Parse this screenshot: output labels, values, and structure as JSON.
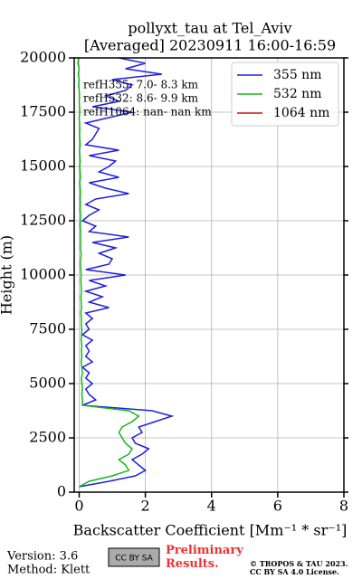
{
  "chart_data": {
    "type": "profile",
    "title": "pollyxt_tau at Tel_Aviv",
    "subtitle": "[Averaged] 20230911 16:00-16:59",
    "xlabel": "Backscatter Coefficient [Mm⁻¹ * sr⁻¹]",
    "ylabel": "Height (m)",
    "y": [
      250,
      500,
      750,
      1000,
      1250,
      1500,
      1750,
      2000,
      2250,
      2500,
      2750,
      3000,
      3250,
      3500,
      3750,
      4000,
      4250,
      4500,
      4750,
      5000,
      5250,
      5500,
      5750,
      6000,
      6250,
      6500,
      6750,
      7000,
      7250,
      7500,
      7750,
      8000,
      8250,
      8500,
      8750,
      9000,
      9250,
      9500,
      9750,
      10000,
      10250,
      10500,
      10750,
      11000,
      11250,
      11500,
      11750,
      12000,
      12250,
      12500,
      12750,
      13000,
      13250,
      13500,
      13750,
      14000,
      14250,
      14500,
      14750,
      15000,
      15250,
      15500,
      15750,
      16000,
      16250,
      16500,
      16750,
      17000,
      17250,
      17500,
      17750,
      18000,
      18250,
      18500,
      18750,
      19000,
      19250,
      19500,
      19750,
      20000
    ],
    "series": [
      {
        "name": "355 nm",
        "color": "#1f1fe0",
        "values": [
          0.0,
          0.9,
          1.7,
          2.0,
          1.8,
          1.6,
          1.9,
          2.1,
          1.7,
          1.6,
          1.9,
          1.8,
          2.3,
          2.8,
          2.2,
          0.1,
          0.5,
          0.3,
          0.2,
          0.4,
          0.2,
          0.3,
          0.1,
          0.4,
          0.2,
          0.3,
          0.2,
          0.4,
          0.1,
          0.3,
          0.2,
          0.4,
          0.2,
          0.9,
          0.3,
          0.7,
          0.2,
          0.8,
          0.3,
          1.4,
          0.2,
          0.9,
          1.0,
          0.6,
          1.1,
          0.4,
          1.5,
          0.3,
          0.5,
          0.1,
          0.3,
          0.6,
          0.2,
          0.5,
          1.5,
          0.8,
          0.3,
          1.2,
          0.6,
          0.9,
          1.1,
          0.3,
          1.2,
          0.2,
          0.4,
          0.5,
          0.6,
          0.2,
          0.9,
          1.6,
          0.4,
          1.2,
          0.8,
          1.4,
          1.6,
          1.0,
          2.5,
          1.4,
          2.0,
          1.2
        ]
      },
      {
        "name": "532 nm",
        "color": "#18b418",
        "values": [
          0.0,
          0.3,
          1.0,
          1.5,
          1.4,
          1.2,
          1.5,
          1.6,
          1.4,
          1.3,
          1.2,
          1.3,
          1.6,
          1.8,
          1.5,
          0.1,
          0.1,
          0.08,
          0.1,
          0.08,
          0.07,
          0.1,
          0.08,
          0.06,
          0.08,
          0.07,
          0.08,
          0.06,
          0.07,
          0.08,
          0.06,
          0.07,
          0.05,
          0.07,
          0.06,
          0.05,
          0.07,
          0.06,
          0.05,
          0.06,
          0.05,
          0.04,
          0.05,
          0.06,
          0.04,
          0.05,
          0.04,
          0.05,
          0.03,
          0.04,
          0.05,
          0.03,
          0.04,
          0.03,
          0.04,
          0.03,
          0.02,
          0.04,
          0.03,
          0.02,
          0.03,
          0.02,
          0.01,
          0.03,
          0.02,
          0.01,
          0.02,
          0.01,
          0.0,
          0.02,
          0.01,
          0.0,
          0.01,
          0.0,
          -0.02,
          0.0,
          -0.03,
          0.0,
          -0.04,
          -0.02
        ]
      },
      {
        "name": "1064 nm",
        "color": "#d01010",
        "values": [
          null,
          null,
          null,
          null,
          null,
          null,
          null,
          null,
          null,
          null,
          null,
          null,
          null,
          null,
          null,
          null,
          null,
          null,
          null,
          null,
          null,
          null,
          null,
          null,
          null,
          null,
          null,
          null,
          null,
          null,
          null,
          null,
          null,
          null,
          null,
          null,
          null,
          null,
          null,
          null,
          null,
          null,
          null,
          null,
          null,
          null,
          null,
          null,
          null,
          null,
          null,
          null,
          null,
          null,
          null,
          null,
          null,
          null,
          null,
          null,
          null,
          null,
          null,
          null,
          null,
          null,
          null,
          null,
          null,
          null,
          null,
          null,
          null,
          null,
          null,
          null,
          null,
          null,
          null,
          null
        ]
      }
    ],
    "xlim": [
      -0.15,
      8
    ],
    "xticks": [
      0,
      2,
      4,
      6,
      8
    ],
    "ylim": [
      0,
      20000
    ],
    "yticks": [
      0,
      2500,
      5000,
      7500,
      10000,
      12500,
      15000,
      17500,
      20000
    ],
    "grid": true,
    "legend": "upper right",
    "annotations": [
      "refH355:  7.0- 8.3 km",
      "refH532:  8.6- 9.9 km",
      "refH1064:  nan- nan km"
    ]
  },
  "footer": {
    "version": "Version: 3.6",
    "method": "Method: Klett",
    "badge": "CC BY SA",
    "notice": "Preliminary Results.",
    "copyright": "© TROPOS & TAU 2023.",
    "license": "CC BY SA 4.0 License."
  }
}
